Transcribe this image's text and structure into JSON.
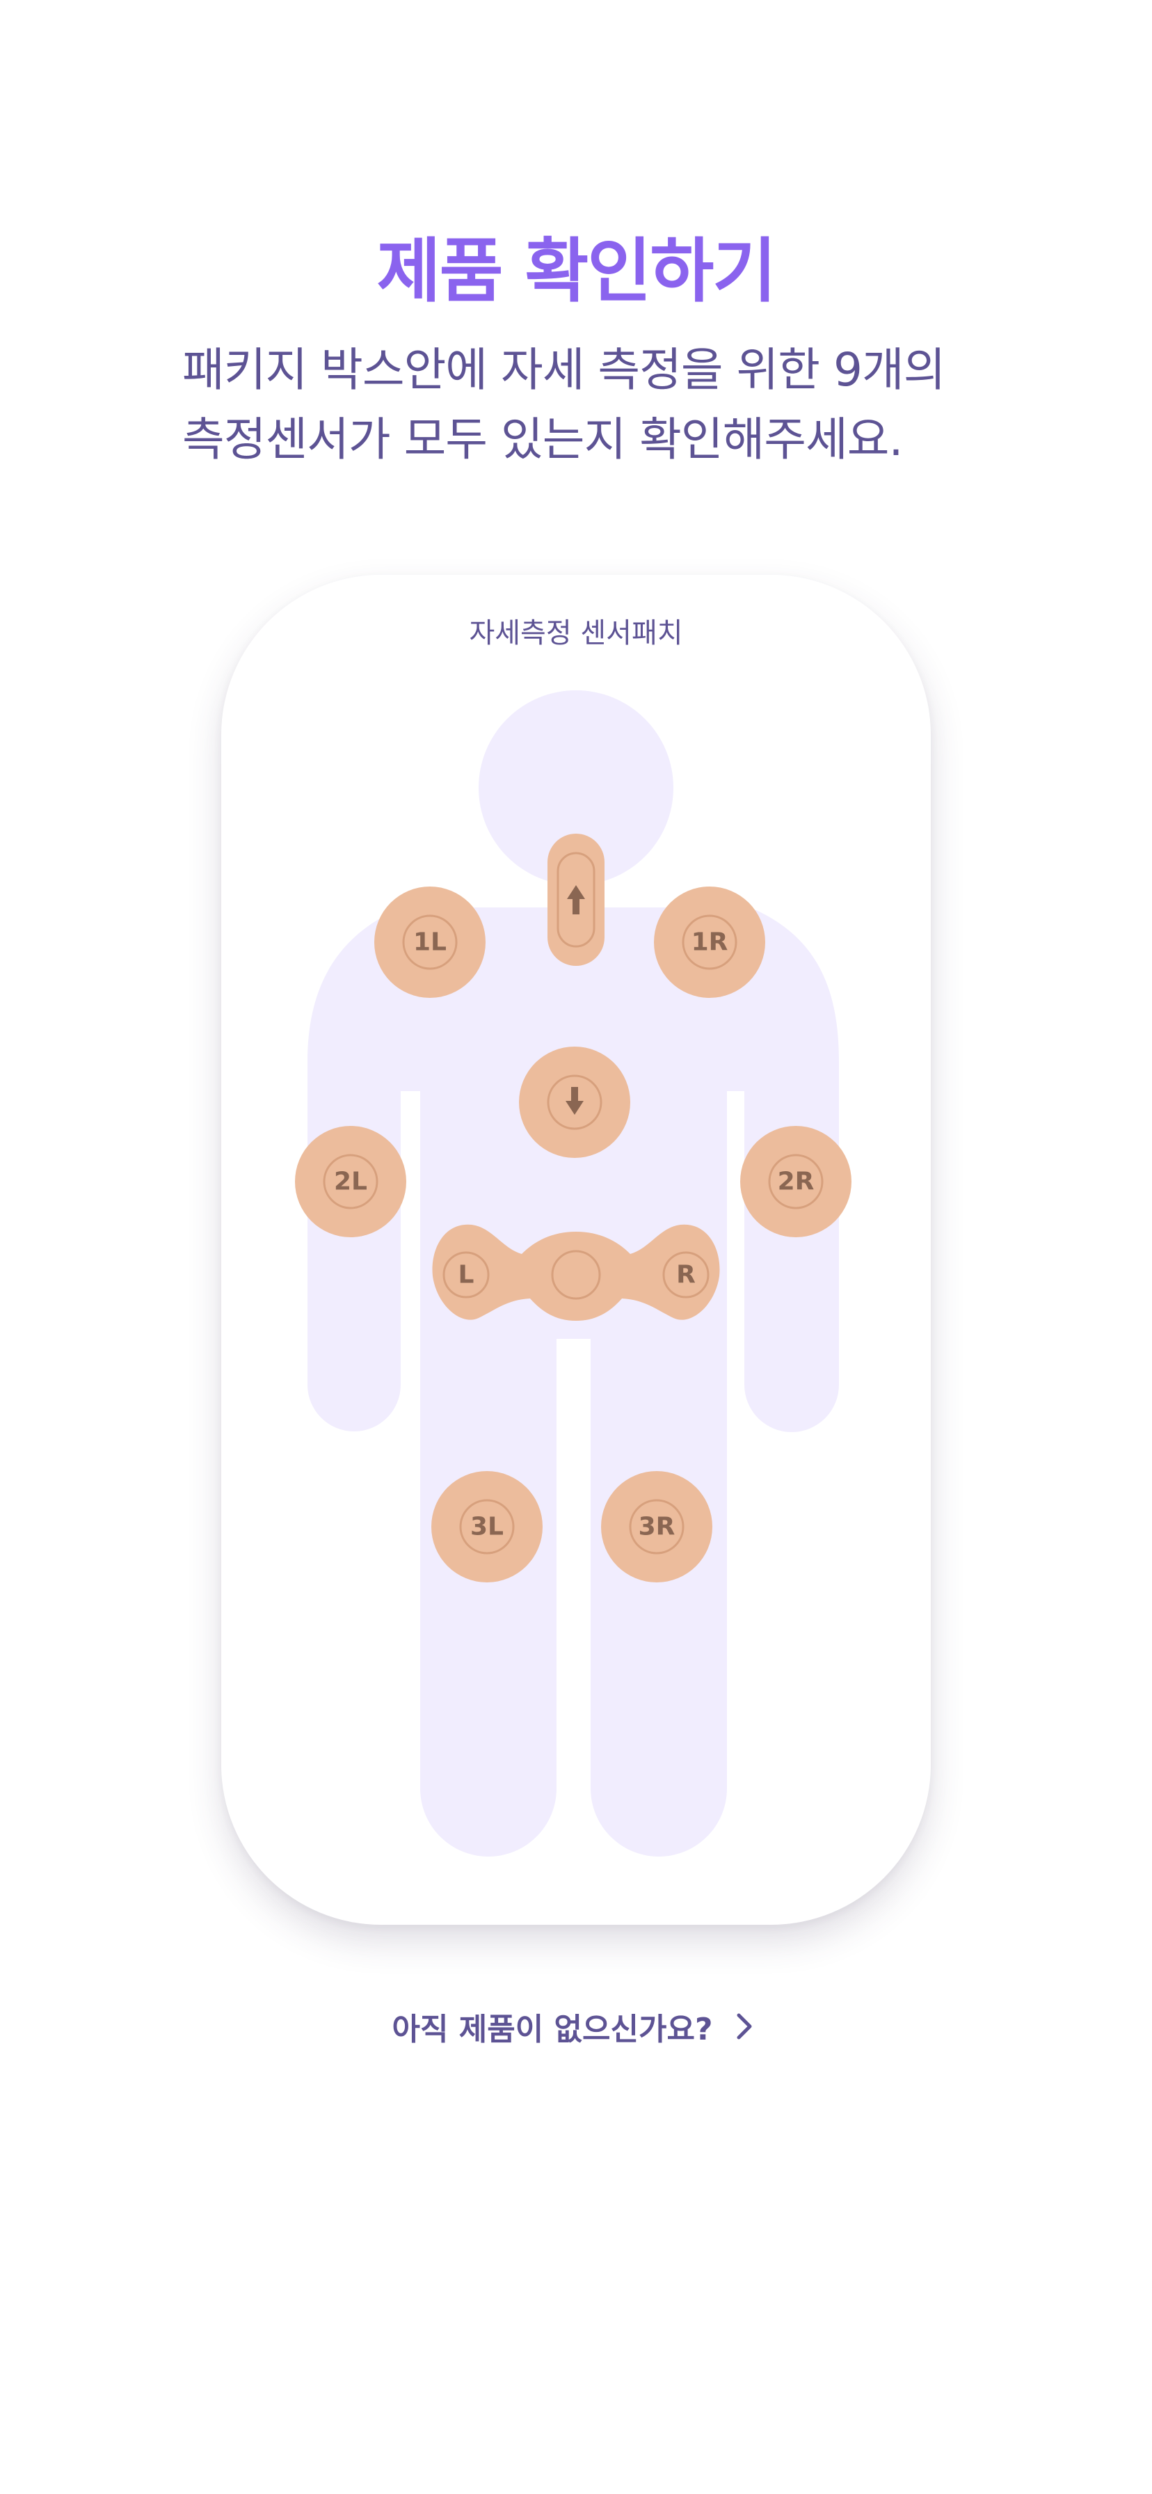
{
  "header": {
    "title": "제품 확인하기",
    "description_line1": "패키지 박스안에 자세 측정을 위한 9개의",
    "description_line2": "측정센서가 모두 있는지 확인해주세요."
  },
  "card": {
    "label": "자세측정 센서패치",
    "sensors": {
      "shoulder_left": "1L",
      "shoulder_right": "1R",
      "arm_left": "2L",
      "arm_right": "2R",
      "hip_left": "L",
      "hip_right": "R",
      "knee_left": "3L",
      "knee_right": "3R",
      "neck_icon": "arrow-up-icon",
      "chest_icon": "arrow-down-icon"
    }
  },
  "footer": {
    "link_label": "아직 제품이 없으신가요?",
    "link_icon": "chevron-right-icon"
  },
  "colors": {
    "accent": "#8a63ee",
    "text": "#5d5394",
    "silhouette": "#f1edfe",
    "patch": "#ecbc9c",
    "patch_text": "#8a6652"
  }
}
